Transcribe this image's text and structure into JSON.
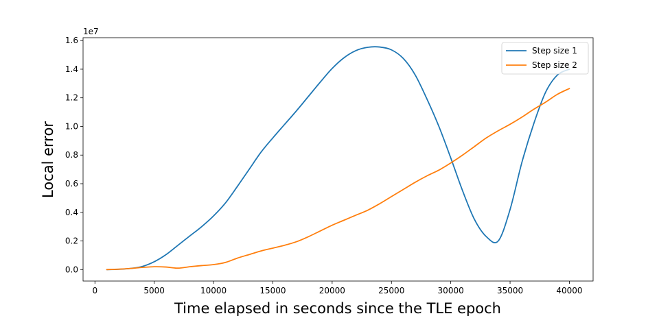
{
  "chart_data": {
    "type": "line",
    "title": "",
    "xlabel": "Time elapsed in seconds since the TLE epoch",
    "ylabel": "Local error",
    "y_scale_label": "1e7",
    "xlim": [
      -1000,
      42000
    ],
    "ylim": [
      -0.8,
      16.2
    ],
    "x_ticks": [
      0,
      5000,
      10000,
      15000,
      20000,
      25000,
      30000,
      35000,
      40000
    ],
    "x_tick_labels": [
      "0",
      "5000",
      "10000",
      "15000",
      "20000",
      "25000",
      "30000",
      "35000",
      "40000"
    ],
    "y_ticks": [
      0,
      2,
      4,
      6,
      8,
      10,
      12,
      14,
      16
    ],
    "y_tick_labels": [
      "0.0",
      "0.2",
      "0.4",
      "0.6",
      "0.8",
      "1.0",
      "1.2",
      "1.4",
      "1.6"
    ],
    "grid": false,
    "legend_position": "top-right",
    "series": [
      {
        "name": "Step size 1",
        "color": "#1f77b4",
        "x": [
          1000,
          2000,
          3000,
          4000,
          5000,
          6000,
          7000,
          8000,
          9000,
          10000,
          11000,
          12000,
          13000,
          14000,
          15000,
          16000,
          17000,
          18000,
          19000,
          20000,
          21000,
          22000,
          23000,
          24000,
          25000,
          26000,
          27000,
          28000,
          29000,
          30000,
          31000,
          32000,
          33000,
          34000,
          35000,
          36000,
          37000,
          38000,
          39000,
          40000
        ],
        "y": [
          0.0,
          0.02,
          0.08,
          0.22,
          0.55,
          1.05,
          1.7,
          2.35,
          3.0,
          3.75,
          4.65,
          5.8,
          7.0,
          8.2,
          9.2,
          10.15,
          11.1,
          12.1,
          13.1,
          14.05,
          14.8,
          15.3,
          15.53,
          15.55,
          15.35,
          14.75,
          13.6,
          11.9,
          10.0,
          7.8,
          5.5,
          3.5,
          2.3,
          2.0,
          4.2,
          7.5,
          10.2,
          12.4,
          13.6,
          14.0
        ]
      },
      {
        "name": "Step size 2",
        "color": "#ff7f0e",
        "x": [
          1000,
          2000,
          3000,
          4000,
          5000,
          6000,
          7000,
          8000,
          9000,
          10000,
          11000,
          12000,
          13000,
          14000,
          15000,
          16000,
          17000,
          18000,
          19000,
          20000,
          21000,
          22000,
          23000,
          24000,
          25000,
          26000,
          27000,
          28000,
          29000,
          30000,
          31000,
          32000,
          33000,
          34000,
          35000,
          36000,
          37000,
          38000,
          39000,
          40000
        ],
        "y": [
          0.0,
          0.03,
          0.08,
          0.15,
          0.2,
          0.18,
          0.1,
          0.2,
          0.28,
          0.35,
          0.5,
          0.8,
          1.05,
          1.3,
          1.5,
          1.7,
          1.95,
          2.3,
          2.7,
          3.1,
          3.45,
          3.8,
          4.15,
          4.6,
          5.1,
          5.6,
          6.1,
          6.55,
          6.95,
          7.45,
          8.0,
          8.6,
          9.2,
          9.7,
          10.15,
          10.65,
          11.2,
          11.7,
          12.25,
          12.65
        ]
      }
    ]
  }
}
